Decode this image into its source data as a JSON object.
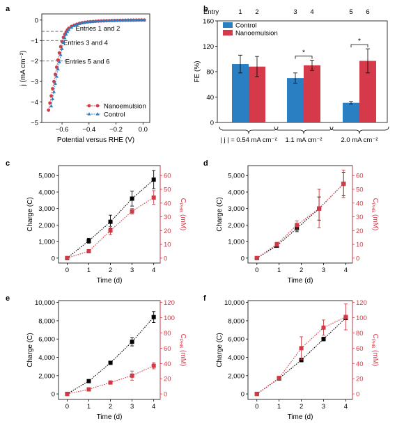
{
  "colors": {
    "control_blue": "#2a7fc3",
    "nanoemulsion_red": "#d43a4a",
    "charge_black": "#000000",
    "conc_red": "#d03a46",
    "grey_dashed": "#555555"
  },
  "panels": {
    "a": {
      "letter": "a"
    },
    "b": {
      "letter": "b"
    },
    "c": {
      "letter": "c"
    },
    "d": {
      "letter": "d"
    },
    "e": {
      "letter": "e"
    },
    "f": {
      "letter": "f"
    }
  },
  "chart_data": [
    {
      "panel": "a",
      "type": "line",
      "xlabel": "Potential versus RHE (V)",
      "ylabel": "j (mA cm⁻²)",
      "xlim": [
        -0.75,
        0.05
      ],
      "ylim": [
        -5,
        0.3
      ],
      "xticks": [
        "−0.6",
        "−0.4",
        "−0.2",
        "0.0"
      ],
      "xtick_values": [
        -0.6,
        -0.4,
        -0.2,
        0.0
      ],
      "yticks": [
        "0",
        "−1",
        "−2",
        "−3",
        "−4",
        "−5"
      ],
      "ytick_values": [
        0,
        -1,
        -2,
        -3,
        -4,
        -5
      ],
      "legend_position": "bottom-right",
      "series": [
        {
          "name": "Nanoemulsion",
          "marker": "circle",
          "color": "#d43a4a",
          "x": [
            -0.7,
            -0.69,
            -0.68,
            -0.67,
            -0.66,
            -0.65,
            -0.64,
            -0.63,
            -0.62,
            -0.61,
            -0.6,
            -0.59,
            -0.58,
            -0.57,
            -0.56,
            -0.55,
            -0.53,
            -0.51,
            -0.49,
            -0.47,
            -0.45,
            -0.43,
            -0.41,
            -0.39,
            -0.37,
            -0.35,
            -0.33,
            -0.31,
            -0.29,
            -0.27,
            -0.25,
            -0.23,
            -0.21,
            -0.19,
            -0.17,
            -0.15,
            -0.13,
            -0.11,
            -0.09,
            -0.07,
            -0.05,
            -0.03,
            -0.01,
            0.01
          ],
          "y": [
            -4.4,
            -4.05,
            -3.7,
            -3.35,
            -3.0,
            -2.65,
            -2.3,
            -1.95,
            -1.6,
            -1.3,
            -1.05,
            -0.85,
            -0.7,
            -0.58,
            -0.48,
            -0.4,
            -0.31,
            -0.25,
            -0.2,
            -0.16,
            -0.13,
            -0.11,
            -0.09,
            -0.08,
            -0.07,
            -0.06,
            -0.05,
            -0.045,
            -0.04,
            -0.035,
            -0.03,
            -0.025,
            -0.02,
            -0.018,
            -0.015,
            -0.012,
            -0.01,
            -0.008,
            -0.006,
            -0.004,
            -0.002,
            0.0,
            0.0,
            0.0
          ]
        },
        {
          "name": "Control",
          "marker": "triangle",
          "color": "#2a7fc3",
          "x": [
            -0.68,
            -0.67,
            -0.66,
            -0.65,
            -0.64,
            -0.63,
            -0.62,
            -0.61,
            -0.6,
            -0.59,
            -0.58,
            -0.57,
            -0.56,
            -0.55,
            -0.53,
            -0.51,
            -0.49,
            -0.47,
            -0.45,
            -0.43,
            -0.41,
            -0.39,
            -0.37,
            -0.35,
            -0.33,
            -0.31,
            -0.29,
            -0.27,
            -0.25,
            -0.23,
            -0.21,
            -0.19,
            -0.17,
            -0.15,
            -0.13,
            -0.11,
            -0.09,
            -0.07,
            -0.05,
            -0.03,
            -0.01,
            0.01
          ],
          "y": [
            -4.2,
            -3.85,
            -3.5,
            -3.1,
            -2.75,
            -2.4,
            -2.05,
            -1.7,
            -1.4,
            -1.1,
            -0.88,
            -0.7,
            -0.57,
            -0.47,
            -0.36,
            -0.28,
            -0.22,
            -0.18,
            -0.14,
            -0.12,
            -0.1,
            -0.085,
            -0.07,
            -0.06,
            -0.05,
            -0.045,
            -0.04,
            -0.035,
            -0.03,
            -0.025,
            -0.02,
            -0.016,
            -0.013,
            -0.01,
            -0.008,
            -0.006,
            -0.004,
            -0.002,
            0.0,
            0.0,
            0.0,
            0.0
          ]
        }
      ],
      "annotations": [
        {
          "text": "Entries 1 and 2",
          "y": -0.55
        },
        {
          "text": "Entries 3 and 4",
          "y": -1.0
        },
        {
          "text": "Entries 5 and 6",
          "y": -2.0
        }
      ]
    },
    {
      "panel": "b",
      "type": "bar",
      "ylabel": "FE (%)",
      "ylim": [
        0,
        160
      ],
      "yticks": [
        "0",
        "40",
        "80",
        "120",
        "160"
      ],
      "ytick_values": [
        0,
        40,
        80,
        120,
        160
      ],
      "top_label": "Entry",
      "legend_position": "top-left",
      "groups": [
        {
          "label": "| j | = 0.54 mA cm⁻²",
          "entries": [
            "1",
            "2"
          ],
          "control": 92,
          "control_err": 14,
          "nano": 88,
          "nano_err": 16,
          "significant": false
        },
        {
          "label": "1.1 mA cm⁻²",
          "entries": [
            "3",
            "4"
          ],
          "control": 70,
          "control_err": 8,
          "nano": 90,
          "nano_err": 8,
          "significant": true
        },
        {
          "label": "2.0 mA cm⁻²",
          "entries": [
            "5",
            "6"
          ],
          "control": 31,
          "control_err": 2,
          "nano": 97,
          "nano_err": 19,
          "significant": true
        }
      ],
      "series_names": [
        "Control",
        "Nanoemulsion"
      ],
      "sig_marker": "*"
    },
    {
      "panel": "c",
      "type": "line",
      "xlabel": "Time (d)",
      "ylabel": "Charge (C)",
      "y2label": "C_PHB (mM)",
      "xlim": [
        -0.4,
        4.3
      ],
      "x": [
        0,
        1,
        2,
        3,
        4
      ],
      "xticks": [
        "0",
        "1",
        "2",
        "3",
        "4"
      ],
      "ylim": [
        -300,
        5600
      ],
      "yticks": [
        "0",
        "1,000",
        "2,000",
        "3,000",
        "4,000",
        "5,000"
      ],
      "ytick_values": [
        0,
        1000,
        2000,
        3000,
        4000,
        5000
      ],
      "y2lim": [
        -3.6,
        67.2
      ],
      "y2ticks": [
        "0",
        "10",
        "20",
        "30",
        "40",
        "50",
        "60"
      ],
      "y2tick_values": [
        0,
        10,
        20,
        30,
        40,
        50,
        60
      ],
      "series": [
        {
          "name": "Charge",
          "axis": "left",
          "marker": "square",
          "values": [
            0,
            1050,
            2200,
            3600,
            4750
          ],
          "errors": [
            0,
            150,
            400,
            450,
            550
          ]
        },
        {
          "name": "C_PHB",
          "axis": "right",
          "marker": "square",
          "values": [
            0,
            5,
            20,
            34,
            44
          ],
          "errors": [
            0,
            0.5,
            3,
            2,
            5
          ]
        }
      ]
    },
    {
      "panel": "d",
      "type": "line",
      "xlabel": "Time (d)",
      "ylabel": "Charge (C)",
      "y2label": "C_PHB (mM)",
      "xlim": [
        -0.4,
        4.3
      ],
      "x_charge": [
        0,
        0.9,
        1.8,
        2.8,
        3.9
      ],
      "x_conc": [
        0,
        0.9,
        1.8,
        2.8,
        3.9
      ],
      "xticks": [
        "0",
        "1",
        "2",
        "3",
        "4"
      ],
      "ylim": [
        -300,
        5600
      ],
      "yticks": [
        "0",
        "1,000",
        "2,000",
        "3,000",
        "4,000",
        "5,000"
      ],
      "ytick_values": [
        0,
        1000,
        2000,
        3000,
        4000,
        5000
      ],
      "y2lim": [
        -3.6,
        67.2
      ],
      "y2ticks": [
        "0",
        "10",
        "20",
        "30",
        "40",
        "50",
        "60"
      ],
      "y2tick_values": [
        0,
        10,
        20,
        30,
        40,
        50,
        60
      ],
      "series": [
        {
          "name": "Charge",
          "axis": "left",
          "marker": "square",
          "values": [
            0,
            750,
            1800,
            3000,
            4500
          ],
          "errors": [
            0,
            100,
            200,
            700,
            700
          ]
        },
        {
          "name": "C_PHB",
          "axis": "right",
          "marker": "square",
          "values": [
            0,
            10,
            24,
            36,
            54
          ],
          "errors": [
            0,
            1.5,
            3,
            14,
            10
          ]
        }
      ]
    },
    {
      "panel": "e",
      "type": "line",
      "xlabel": "Time (d)",
      "ylabel": "Charge (C)",
      "y2label": "C_PHB (mM)",
      "xlim": [
        -0.4,
        4.3
      ],
      "x": [
        0,
        1,
        2,
        3,
        4
      ],
      "xticks": [
        "0",
        "1",
        "2",
        "3",
        "4"
      ],
      "ylim": [
        -600,
        10200
      ],
      "yticks": [
        "0",
        "2,000",
        "4,000",
        "6,000",
        "8,000",
        "10,000"
      ],
      "ytick_values": [
        0,
        2000,
        4000,
        6000,
        8000,
        10000
      ],
      "y2lim": [
        -7.2,
        122.4
      ],
      "y2ticks": [
        "0",
        "20",
        "40",
        "60",
        "80",
        "100",
        "120"
      ],
      "y2tick_values": [
        0,
        20,
        40,
        60,
        80,
        100,
        120
      ],
      "series": [
        {
          "name": "Charge",
          "axis": "left",
          "marker": "square",
          "values": [
            0,
            1400,
            3400,
            5700,
            8400
          ],
          "errors": [
            0,
            0,
            0,
            450,
            600
          ]
        },
        {
          "name": "C_PHB",
          "axis": "right",
          "marker": "square",
          "values": [
            0,
            6,
            15,
            24,
            37
          ],
          "errors": [
            0,
            0,
            0,
            6,
            4
          ]
        }
      ]
    },
    {
      "panel": "f",
      "type": "line",
      "xlabel": "Time (d)",
      "ylabel": "Charge (C)",
      "y2label": "C_PHB (mM)",
      "xlim": [
        -0.4,
        4.3
      ],
      "x": [
        0,
        1,
        2,
        3,
        4
      ],
      "xticks": [
        "0",
        "1",
        "2",
        "3",
        "4"
      ],
      "ylim": [
        -600,
        10200
      ],
      "yticks": [
        "0",
        "2,000",
        "4,000",
        "6,000",
        "8,000",
        "10,000"
      ],
      "ytick_values": [
        0,
        2000,
        4000,
        6000,
        8000,
        10000
      ],
      "y2lim": [
        -7.2,
        122.4
      ],
      "y2ticks": [
        "0",
        "20",
        "40",
        "60",
        "80",
        "100",
        "120"
      ],
      "y2tick_values": [
        0,
        20,
        40,
        60,
        80,
        100,
        120
      ],
      "series": [
        {
          "name": "Charge",
          "axis": "left",
          "marker": "square",
          "values": [
            0,
            1700,
            3700,
            6000,
            8300
          ],
          "errors": [
            0,
            100,
            200,
            200,
            200
          ]
        },
        {
          "name": "C_PHB",
          "axis": "right",
          "marker": "square",
          "values": [
            0,
            21,
            60,
            87,
            101
          ],
          "errors": [
            0,
            1,
            15,
            10,
            17
          ]
        }
      ]
    }
  ]
}
